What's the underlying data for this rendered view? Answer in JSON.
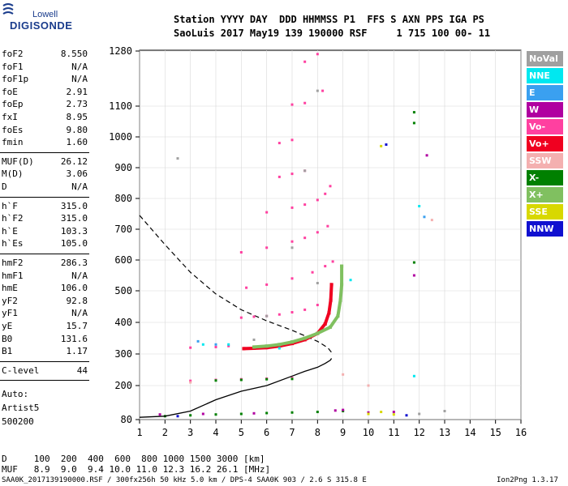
{
  "logo": {
    "top": "Lowell",
    "bottom": "DIGISONDE",
    "icon": "digisonde-logo-icon"
  },
  "header": {
    "line1": "Station YYYY DAY  DDD HHMMSS P1  FFS S AXN PPS IGA PS",
    "line2": "SaoLuis 2017 May19 139 190000 RSF     1 715 100 00- 11"
  },
  "params_groups": [
    [
      [
        "foF2",
        "8.550"
      ],
      [
        "foF1",
        "N/A"
      ],
      [
        "foF1p",
        "N/A"
      ],
      [
        "foE",
        "2.91"
      ],
      [
        "foEp",
        "2.73"
      ],
      [
        "fxI",
        "8.95"
      ],
      [
        "foEs",
        "9.80"
      ],
      [
        "fmin",
        "1.60"
      ]
    ],
    [
      [
        "MUF(D)",
        "26.12"
      ],
      [
        "M(D)",
        "3.06"
      ],
      [
        "D",
        "N/A"
      ]
    ],
    [
      [
        "h`F",
        "315.0"
      ],
      [
        "h`F2",
        "315.0"
      ],
      [
        "h`E",
        "103.3"
      ],
      [
        "h`Es",
        "105.0"
      ]
    ],
    [
      [
        "hmF2",
        "286.3"
      ],
      [
        "hmF1",
        "N/A"
      ],
      [
        "hmE",
        "106.0"
      ],
      [
        "yF2",
        "92.8"
      ],
      [
        "yF1",
        "N/A"
      ],
      [
        "yE",
        "15.7"
      ],
      [
        "B0",
        "131.6"
      ],
      [
        "B1",
        "1.17"
      ]
    ],
    [
      [
        "C-level",
        "44"
      ]
    ]
  ],
  "auto": {
    "line1": "Auto:",
    "line2": "Artist5",
    "line3": "500200"
  },
  "legend": [
    {
      "label": "NoVal",
      "color": "#a0a0a0"
    },
    {
      "label": "NNE",
      "color": "#00e8f0"
    },
    {
      "label": "E",
      "color": "#3aa0f0"
    },
    {
      "label": "W",
      "color": "#b000a0"
    },
    {
      "label": "Vo-",
      "color": "#ff40a0"
    },
    {
      "label": "Vo+",
      "color": "#f00020"
    },
    {
      "label": "SSW",
      "color": "#f4b0b0"
    },
    {
      "label": "X-",
      "color": "#008000"
    },
    {
      "label": "X+",
      "color": "#80c060"
    },
    {
      "label": "SSE",
      "color": "#d8d800"
    },
    {
      "label": "NNW",
      "color": "#1010d0"
    }
  ],
  "bottom_table": {
    "row1": "D     100  200  400  600  800 1000 1500 3000 [km]",
    "row2": "MUF   8.9  9.0  9.4 10.0 11.0 12.3 16.2 26.1 [MHz]"
  },
  "footer": {
    "left": "SAA0K_2017139190000.RSF / 300fx256h 50 kHz 5.0 km / DPS-4 SAA0K 903 / 2.6 S 315.8 E",
    "right": "Ion2Png 1.3.17"
  },
  "chart_data": {
    "type": "scatter",
    "title": "",
    "xlabel": "",
    "ylabel": "",
    "xlim": [
      1,
      16
    ],
    "ylim": [
      80,
      1300
    ],
    "x_ticks": [
      1,
      2,
      3,
      4,
      5,
      6,
      7,
      8,
      9,
      10,
      11,
      12,
      13,
      14,
      15,
      16
    ],
    "y_ticks": [
      80,
      200,
      300,
      400,
      500,
      600,
      700,
      800,
      900,
      1000,
      1100,
      1280
    ],
    "grid": true,
    "series": [
      {
        "name": "Vo+",
        "color": "#f00020",
        "style": "trace",
        "points": [
          [
            5.1,
            317
          ],
          [
            5.5,
            318
          ],
          [
            6.0,
            320
          ],
          [
            6.5,
            325
          ],
          [
            7.0,
            333
          ],
          [
            7.5,
            345
          ],
          [
            8.0,
            365
          ],
          [
            8.3,
            395
          ],
          [
            8.45,
            430
          ],
          [
            8.52,
            470
          ],
          [
            8.55,
            520
          ]
        ]
      },
      {
        "name": "X+",
        "color": "#80c060",
        "style": "trace",
        "points": [
          [
            5.5,
            322
          ],
          [
            6.0,
            325
          ],
          [
            6.5,
            330
          ],
          [
            7.0,
            338
          ],
          [
            7.5,
            350
          ],
          [
            8.0,
            365
          ],
          [
            8.5,
            385
          ],
          [
            8.8,
            420
          ],
          [
            8.9,
            470
          ],
          [
            8.95,
            520
          ],
          [
            8.95,
            580
          ]
        ]
      },
      {
        "name": "Vo-",
        "color": "#ff40a0",
        "style": "dots",
        "points": [
          [
            5.0,
            415
          ],
          [
            5.5,
            418
          ],
          [
            6.0,
            420
          ],
          [
            6.5,
            425
          ],
          [
            7.0,
            432
          ],
          [
            7.5,
            440
          ],
          [
            8.0,
            455
          ],
          [
            5.2,
            510
          ],
          [
            6.0,
            520
          ],
          [
            7.0,
            540
          ],
          [
            7.8,
            560
          ],
          [
            8.3,
            580
          ],
          [
            8.6,
            595
          ],
          [
            5.0,
            625
          ],
          [
            6.0,
            640
          ],
          [
            7.0,
            660
          ],
          [
            7.5,
            672
          ],
          [
            8.0,
            690
          ],
          [
            8.4,
            710
          ],
          [
            6.0,
            755
          ],
          [
            7.0,
            770
          ],
          [
            7.5,
            780
          ],
          [
            8.0,
            795
          ],
          [
            8.3,
            815
          ],
          [
            8.5,
            840
          ],
          [
            6.5,
            870
          ],
          [
            7.0,
            880
          ],
          [
            7.5,
            890
          ],
          [
            6.5,
            980
          ],
          [
            7.0,
            990
          ],
          [
            7.0,
            1105
          ],
          [
            7.5,
            1110
          ],
          [
            8.2,
            1150
          ],
          [
            7.5,
            1245
          ],
          [
            8.0,
            1270
          ],
          [
            3.0,
            320
          ],
          [
            4.0,
            322
          ],
          [
            4.5,
            325
          ],
          [
            3.0,
            215
          ],
          [
            4.0,
            218
          ],
          [
            5.0,
            220
          ],
          [
            6.0,
            222
          ],
          [
            7.0,
            224
          ]
        ]
      },
      {
        "name": "X-",
        "color": "#008000",
        "style": "dots",
        "points": [
          [
            2.0,
            92
          ],
          [
            3.0,
            95
          ],
          [
            4.0,
            98
          ],
          [
            5.0,
            100
          ],
          [
            6.0,
            103
          ],
          [
            7.0,
            105
          ],
          [
            8.0,
            107
          ],
          [
            9.0,
            110
          ],
          [
            4.0,
            216
          ],
          [
            5.0,
            218
          ],
          [
            6.0,
            220
          ],
          [
            7.0,
            221
          ],
          [
            11.8,
            1080
          ],
          [
            11.8,
            1045
          ],
          [
            11.8,
            592
          ]
        ]
      },
      {
        "name": "W",
        "color": "#b000a0",
        "style": "dots",
        "points": [
          [
            1.8,
            98
          ],
          [
            3.5,
            100
          ],
          [
            5.5,
            102
          ],
          [
            8.7,
            112
          ],
          [
            9.0,
            114
          ],
          [
            10.0,
            105
          ],
          [
            11.0,
            107
          ],
          [
            11.8,
            550
          ],
          [
            12.3,
            940
          ]
        ]
      },
      {
        "name": "NNE",
        "color": "#00e8f0",
        "style": "dots",
        "points": [
          [
            9.3,
            535
          ],
          [
            12.0,
            775
          ],
          [
            11.8,
            230
          ],
          [
            3.5,
            330
          ],
          [
            4.5,
            330
          ],
          [
            6.5,
            318
          ]
        ]
      },
      {
        "name": "SSE",
        "color": "#d8d800",
        "style": "dots",
        "points": [
          [
            10.0,
            100
          ],
          [
            10.5,
            107
          ],
          [
            11.0,
            98
          ],
          [
            10.5,
            970
          ]
        ]
      },
      {
        "name": "NNW",
        "color": "#1010d0",
        "style": "dots",
        "points": [
          [
            10.7,
            975
          ],
          [
            2.5,
            92
          ],
          [
            11.5,
            95
          ]
        ]
      },
      {
        "name": "E",
        "color": "#3aa0f0",
        "style": "dots",
        "points": [
          [
            4.0,
            330
          ],
          [
            3.3,
            340
          ],
          [
            12.2,
            740
          ]
        ]
      },
      {
        "name": "SSW",
        "color": "#f4b0b0",
        "style": "dots",
        "points": [
          [
            3.0,
            210
          ],
          [
            12.5,
            730
          ],
          [
            9.0,
            235
          ],
          [
            10.0,
            200
          ]
        ]
      },
      {
        "name": "NoVal",
        "color": "#a0a0a0",
        "style": "dots",
        "points": [
          [
            2.5,
            930
          ],
          [
            8.0,
            525
          ],
          [
            5.5,
            345
          ],
          [
            6.0,
            420
          ],
          [
            7.0,
            640
          ],
          [
            7.5,
            890
          ],
          [
            8.0,
            1150
          ],
          [
            12.0,
            100
          ],
          [
            13.0,
            110
          ]
        ]
      }
    ],
    "profile_curve": {
      "color": "#000000",
      "points": [
        [
          1.0,
          88
        ],
        [
          2.0,
          92
        ],
        [
          3.0,
          110
        ],
        [
          4.0,
          150
        ],
        [
          5.0,
          180
        ],
        [
          6.0,
          200
        ],
        [
          7.0,
          230
        ],
        [
          7.5,
          245
        ],
        [
          8.0,
          258
        ],
        [
          8.3,
          270
        ],
        [
          8.5,
          280
        ],
        [
          8.55,
          286
        ]
      ]
    },
    "muf_curve": {
      "color": "#000000",
      "dashed": true,
      "points": [
        [
          1.0,
          745
        ],
        [
          2.0,
          650
        ],
        [
          3.0,
          560
        ],
        [
          4.0,
          490
        ],
        [
          5.0,
          440
        ],
        [
          6.0,
          405
        ],
        [
          7.0,
          375
        ],
        [
          8.0,
          340
        ],
        [
          8.4,
          320
        ],
        [
          8.55,
          305
        ]
      ]
    }
  }
}
